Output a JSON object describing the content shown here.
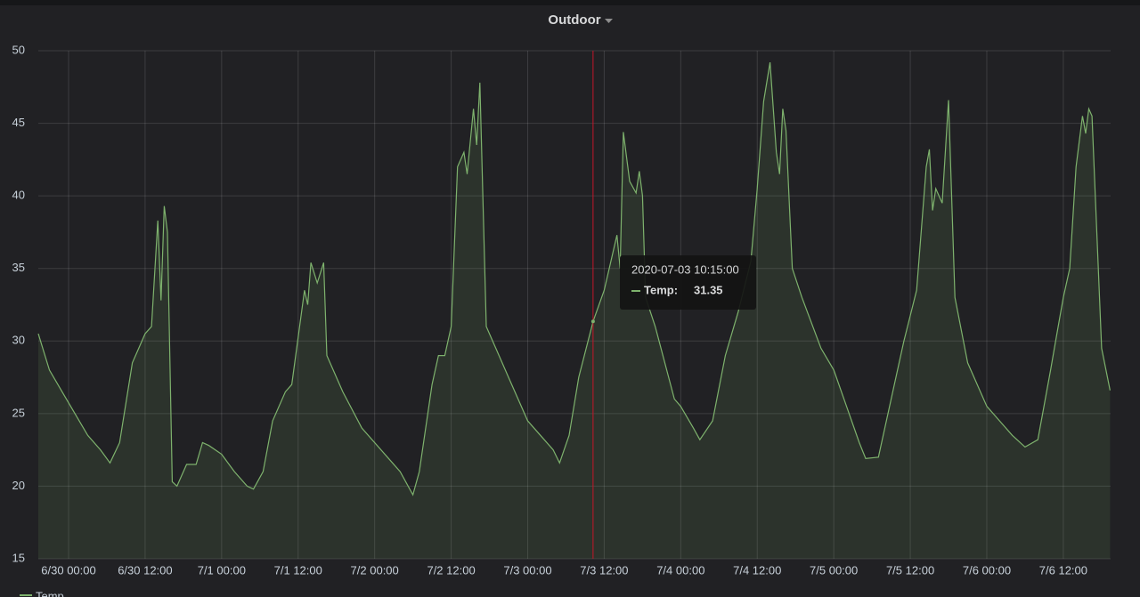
{
  "chart_data": {
    "type": "line",
    "title": "Outdoor",
    "x": [
      "2020-06-29T19:15",
      "2020-06-29T21:00",
      "2020-06-29T23:00",
      "2020-06-30T01:00",
      "2020-06-30T03:00",
      "2020-06-30T05:00",
      "2020-06-30T06:30",
      "2020-06-30T08:00",
      "2020-06-30T10:00",
      "2020-06-30T11:00",
      "2020-06-30T12:00",
      "2020-06-30T13:00",
      "2020-06-30T14:00",
      "2020-06-30T14:30",
      "2020-06-30T15:00",
      "2020-06-30T15:30",
      "2020-06-30T16:15",
      "2020-06-30T17:00",
      "2020-06-30T18:30",
      "2020-06-30T20:00",
      "2020-06-30T21:00",
      "2020-06-30T22:00",
      "2020-07-01T00:00",
      "2020-07-01T02:00",
      "2020-07-01T04:00",
      "2020-07-01T05:00",
      "2020-07-01T06:30",
      "2020-07-01T08:00",
      "2020-07-01T10:00",
      "2020-07-01T11:00",
      "2020-07-01T13:00",
      "2020-07-01T13:30",
      "2020-07-01T14:00",
      "2020-07-01T15:00",
      "2020-07-01T16:00",
      "2020-07-01T16:30",
      "2020-07-01T19:00",
      "2020-07-01T22:00",
      "2020-07-02T02:00",
      "2020-07-02T04:00",
      "2020-07-02T06:00",
      "2020-07-02T07:00",
      "2020-07-02T09:00",
      "2020-07-02T10:00",
      "2020-07-02T11:00",
      "2020-07-02T12:00",
      "2020-07-02T13:00",
      "2020-07-02T14:00",
      "2020-07-02T14:30",
      "2020-07-02T15:30",
      "2020-07-02T16:00",
      "2020-07-02T16:30",
      "2020-07-02T17:30",
      "2020-07-02T19:00",
      "2020-07-02T21:00",
      "2020-07-03T00:00",
      "2020-07-03T02:00",
      "2020-07-03T04:00",
      "2020-07-03T05:00",
      "2020-07-03T06:30",
      "2020-07-03T08:00",
      "2020-07-03T10:15",
      "2020-07-03T12:00",
      "2020-07-03T14:00",
      "2020-07-03T14:30",
      "2020-07-03T15:00",
      "2020-07-03T16:00",
      "2020-07-03T17:00",
      "2020-07-03T17:30",
      "2020-07-03T18:00",
      "2020-07-03T18:30",
      "2020-07-03T20:00",
      "2020-07-03T23:00",
      "2020-07-04T00:00",
      "2020-07-04T02:00",
      "2020-07-04T03:00",
      "2020-07-04T05:00",
      "2020-07-04T07:00",
      "2020-07-04T09:00",
      "2020-07-04T11:00",
      "2020-07-04T12:00",
      "2020-07-04T13:00",
      "2020-07-04T14:00",
      "2020-07-04T15:00",
      "2020-07-04T15:30",
      "2020-07-04T16:00",
      "2020-07-04T16:30",
      "2020-07-04T17:30",
      "2020-07-04T19:00",
      "2020-07-04T22:00",
      "2020-07-05T00:00",
      "2020-07-05T02:00",
      "2020-07-05T04:00",
      "2020-07-05T05:00",
      "2020-07-05T07:00",
      "2020-07-05T09:00",
      "2020-07-05T11:00",
      "2020-07-05T13:00",
      "2020-07-05T14:30",
      "2020-07-05T15:00",
      "2020-07-05T15:30",
      "2020-07-05T16:00",
      "2020-07-05T17:00",
      "2020-07-05T18:00",
      "2020-07-05T19:00",
      "2020-07-05T21:00",
      "2020-07-06T00:00",
      "2020-07-06T02:00",
      "2020-07-06T04:00",
      "2020-07-06T06:00",
      "2020-07-06T08:00",
      "2020-07-06T10:00",
      "2020-07-06T11:00",
      "2020-07-06T12:00",
      "2020-07-06T13:00",
      "2020-07-06T14:00",
      "2020-07-06T15:00",
      "2020-07-06T15:30",
      "2020-07-06T16:00",
      "2020-07-06T16:30",
      "2020-07-06T18:00",
      "2020-07-06T19:20"
    ],
    "series": [
      {
        "name": "Temp",
        "color": "#7eb26d",
        "values": [
          30.5,
          28,
          26.5,
          25,
          23.5,
          22.5,
          21.6,
          23,
          28.5,
          29.5,
          30.5,
          31,
          38.3,
          32.8,
          39.3,
          37.5,
          20.3,
          20,
          21.5,
          21.5,
          23,
          22.8,
          22.2,
          21,
          20,
          19.8,
          21,
          24.5,
          26.5,
          27,
          33.5,
          32.5,
          35.4,
          34,
          35.4,
          29,
          26.5,
          24,
          22,
          21,
          19.4,
          21,
          27,
          29,
          29,
          31,
          42,
          43,
          41.5,
          46,
          43.5,
          47.8,
          31,
          29.5,
          27.5,
          24.5,
          23.5,
          22.5,
          21.6,
          23.5,
          27.5,
          31.35,
          33.5,
          37.3,
          35,
          44.4,
          41,
          40.2,
          41.7,
          40,
          33,
          31,
          26,
          25.5,
          24,
          23.2,
          24.5,
          29,
          32,
          35.5,
          40.5,
          46.5,
          49.2,
          43,
          41.5,
          46,
          44.5,
          35,
          33,
          29.5,
          28,
          25.5,
          23,
          21.9,
          22,
          26,
          30,
          33.5,
          42,
          43.2,
          39,
          40.5,
          39.5,
          46.6,
          33,
          28.5,
          25.5,
          24.5,
          23.5,
          22.7,
          23.2,
          28,
          30.5,
          33,
          35,
          42,
          45.5,
          44.3,
          46,
          45.5,
          29.5,
          26.6
        ]
      }
    ],
    "xlim": [
      "2020-06-29T19:15",
      "2020-07-06T19:25"
    ],
    "xticks": [
      {
        "value": "2020-06-30T00:00",
        "label": "6/30 00:00"
      },
      {
        "value": "2020-06-30T12:00",
        "label": "6/30 12:00"
      },
      {
        "value": "2020-07-01T00:00",
        "label": "7/1 00:00"
      },
      {
        "value": "2020-07-01T12:00",
        "label": "7/1 12:00"
      },
      {
        "value": "2020-07-02T00:00",
        "label": "7/2 00:00"
      },
      {
        "value": "2020-07-02T12:00",
        "label": "7/2 12:00"
      },
      {
        "value": "2020-07-03T00:00",
        "label": "7/3 00:00"
      },
      {
        "value": "2020-07-03T12:00",
        "label": "7/3 12:00"
      },
      {
        "value": "2020-07-04T00:00",
        "label": "7/4 00:00"
      },
      {
        "value": "2020-07-04T12:00",
        "label": "7/4 12:00"
      },
      {
        "value": "2020-07-05T00:00",
        "label": "7/5 00:00"
      },
      {
        "value": "2020-07-05T12:00",
        "label": "7/5 12:00"
      },
      {
        "value": "2020-07-06T00:00",
        "label": "7/6 00:00"
      },
      {
        "value": "2020-07-06T12:00",
        "label": "7/6 12:00"
      }
    ],
    "ylim": [
      15,
      50
    ],
    "yticks": [
      15,
      20,
      25,
      30,
      35,
      40,
      45,
      50
    ],
    "grid": true,
    "tooltip": {
      "time": "2020-07-03 10:15:00",
      "label": "Temp:",
      "value": 31.35
    }
  }
}
